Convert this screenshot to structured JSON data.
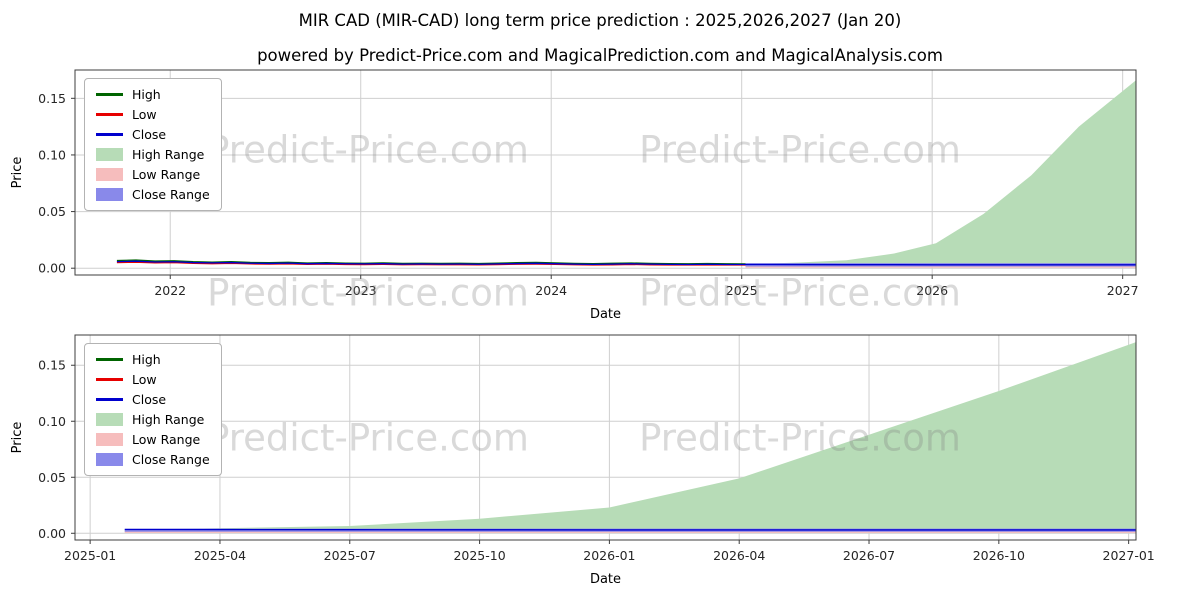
{
  "title": "MIR CAD (MIR-CAD) long term price prediction : 2025,2026,2027 (Jan 20)",
  "subtitle": "powered by Predict-Price.com and MagicalPrediction.com and MagicalAnalysis.com",
  "watermark": {
    "text": "Predict-Price.com"
  },
  "colors": {
    "high_line": "#006400",
    "low_line": "#e60000",
    "close_line": "#0000cd",
    "high_range_fill": "#b7dcb7",
    "low_range_fill": "#f6bdbd",
    "close_range_fill": "#8989ea",
    "grid": "#cfcfcf",
    "border": "#3c3c3c",
    "watermark_text": "rgba(128,128,128,0.30)"
  },
  "legend": [
    {
      "label": "High",
      "swatch": "line",
      "color_key": "high_line"
    },
    {
      "label": "Low",
      "swatch": "line",
      "color_key": "low_line"
    },
    {
      "label": "Close",
      "swatch": "line",
      "color_key": "close_line"
    },
    {
      "label": "High Range",
      "swatch": "patch",
      "color_key": "high_range_fill"
    },
    {
      "label": "Low Range",
      "swatch": "patch",
      "color_key": "low_range_fill"
    },
    {
      "label": "Close Range",
      "swatch": "patch",
      "color_key": "close_range_fill"
    }
  ],
  "chart_data": [
    {
      "type": "line",
      "title": "",
      "xlabel": "Date",
      "ylabel": "Price",
      "x_unit": "year",
      "xlim": [
        2021.5,
        2027.07
      ],
      "ylim": [
        -0.006,
        0.175
      ],
      "grid": true,
      "legend_position": "upper-left",
      "xticks": {
        "values": [
          2022,
          2023,
          2024,
          2025,
          2026,
          2027
        ],
        "labels": [
          "2022",
          "2023",
          "2024",
          "2025",
          "2026",
          "2027"
        ]
      },
      "yticks": {
        "values": [
          0.0,
          0.05,
          0.1,
          0.15
        ],
        "labels": [
          "0.00",
          "0.05",
          "0.10",
          "0.15"
        ]
      },
      "history": {
        "x": [
          2021.72,
          2021.82,
          2021.92,
          2022.02,
          2022.12,
          2022.22,
          2022.32,
          2022.42,
          2022.52,
          2022.62,
          2022.72,
          2022.82,
          2022.92,
          2023.02,
          2023.12,
          2023.22,
          2023.32,
          2023.42,
          2023.52,
          2023.62,
          2023.72,
          2023.82,
          2023.92,
          2024.02,
          2024.12,
          2024.22,
          2024.32,
          2024.42,
          2024.52,
          2024.62,
          2024.72,
          2024.82,
          2024.92,
          2025.02
        ],
        "high": [
          0.0068,
          0.0072,
          0.0063,
          0.0066,
          0.0058,
          0.0054,
          0.0058,
          0.0051,
          0.0049,
          0.0052,
          0.0046,
          0.0049,
          0.0045,
          0.0044,
          0.0047,
          0.0042,
          0.0044,
          0.0042,
          0.0044,
          0.0041,
          0.0045,
          0.0049,
          0.0051,
          0.0047,
          0.0042,
          0.004,
          0.0043,
          0.0046,
          0.0042,
          0.004,
          0.0039,
          0.0041,
          0.0039,
          0.0038
        ],
        "low": [
          0.005,
          0.0053,
          0.0047,
          0.0049,
          0.0043,
          0.004,
          0.0043,
          0.0038,
          0.0036,
          0.0038,
          0.0034,
          0.0036,
          0.0033,
          0.0032,
          0.0034,
          0.0031,
          0.0032,
          0.0031,
          0.0031,
          0.003,
          0.0032,
          0.0035,
          0.0036,
          0.0034,
          0.0031,
          0.0029,
          0.003,
          0.0033,
          0.003,
          0.0029,
          0.0028,
          0.0029,
          0.0028,
          0.0028
        ],
        "close": [
          0.0058,
          0.0062,
          0.0055,
          0.0057,
          0.005,
          0.0047,
          0.005,
          0.0044,
          0.0042,
          0.0045,
          0.004,
          0.0042,
          0.0039,
          0.0038,
          0.004,
          0.0036,
          0.0038,
          0.0036,
          0.0037,
          0.0035,
          0.0038,
          0.0041,
          0.0043,
          0.004,
          0.0036,
          0.0034,
          0.0036,
          0.0039,
          0.0036,
          0.0034,
          0.0033,
          0.0035,
          0.0033,
          0.0033
        ]
      },
      "forecast": {
        "x": [
          2025.02,
          2025.3,
          2025.55,
          2025.8,
          2026.02,
          2026.27,
          2026.52,
          2026.77,
          2027.1
        ],
        "high_range_upper": [
          0.0035,
          0.005,
          0.007,
          0.013,
          0.022,
          0.048,
          0.082,
          0.125,
          0.17
        ],
        "high_range_lower": [
          0.0008,
          0.0008,
          0.0008,
          0.0008,
          0.0008,
          0.0008,
          0.0008,
          0.0008,
          0.0008
        ],
        "low_range_upper": [
          0.0022,
          0.0022,
          0.0022,
          0.0022,
          0.0022,
          0.0022,
          0.0022,
          0.0022,
          0.0022
        ],
        "low_range_lower": [
          0.0004,
          0.0004,
          0.0004,
          0.0004,
          0.0004,
          0.0004,
          0.0004,
          0.0004,
          0.0004
        ],
        "close_range_upper": [
          0.0045,
          0.0045,
          0.0045,
          0.0045,
          0.0045,
          0.0045,
          0.0045,
          0.0045,
          0.0045
        ],
        "close_range_lower": [
          0.0015,
          0.0015,
          0.0015,
          0.0015,
          0.0015,
          0.0015,
          0.0015,
          0.0015,
          0.0015
        ],
        "close_line": [
          0.0033,
          0.0032,
          0.0031,
          0.0031,
          0.003,
          0.003,
          0.003,
          0.003,
          0.003
        ]
      }
    },
    {
      "type": "line",
      "title": "",
      "xlabel": "Date",
      "ylabel": "Price",
      "x_unit": "months-since-2025-01",
      "xlim": [
        -0.35,
        24.17
      ],
      "ylim": [
        -0.006,
        0.177
      ],
      "grid": true,
      "legend_position": "upper-left",
      "xticks": {
        "values": [
          0,
          3,
          6,
          9,
          12,
          15,
          18,
          21,
          24
        ],
        "labels": [
          "2025-01",
          "2025-04",
          "2025-07",
          "2025-10",
          "2026-01",
          "2026-04",
          "2026-07",
          "2026-10",
          "2027-01"
        ]
      },
      "yticks": {
        "values": [
          0.0,
          0.05,
          0.1,
          0.15
        ],
        "labels": [
          "0.00",
          "0.05",
          "0.10",
          "0.15"
        ]
      },
      "forecast": {
        "x": [
          0.8,
          3,
          6,
          9,
          12,
          15,
          18,
          21,
          24.2
        ],
        "high_range_upper": [
          0.0032,
          0.0045,
          0.0065,
          0.013,
          0.023,
          0.049,
          0.088,
          0.127,
          0.171
        ],
        "high_range_lower": [
          0.0008,
          0.0008,
          0.0008,
          0.0008,
          0.0008,
          0.0008,
          0.0008,
          0.0008,
          0.0008
        ],
        "low_range_upper": [
          0.002,
          0.002,
          0.002,
          0.002,
          0.002,
          0.002,
          0.002,
          0.002,
          0.002
        ],
        "low_range_lower": [
          0.0004,
          0.0004,
          0.0004,
          0.0004,
          0.0004,
          0.0004,
          0.0004,
          0.0004,
          0.0004
        ],
        "close_range_upper": [
          0.0042,
          0.0042,
          0.0042,
          0.0042,
          0.0042,
          0.0042,
          0.0042,
          0.0042,
          0.0042
        ],
        "close_range_lower": [
          0.0014,
          0.0014,
          0.0014,
          0.0014,
          0.0014,
          0.0014,
          0.0014,
          0.0014,
          0.0014
        ],
        "close_line": [
          0.0034,
          0.0033,
          0.0032,
          0.0031,
          0.003,
          0.003,
          0.003,
          0.003,
          0.003
        ]
      }
    }
  ]
}
